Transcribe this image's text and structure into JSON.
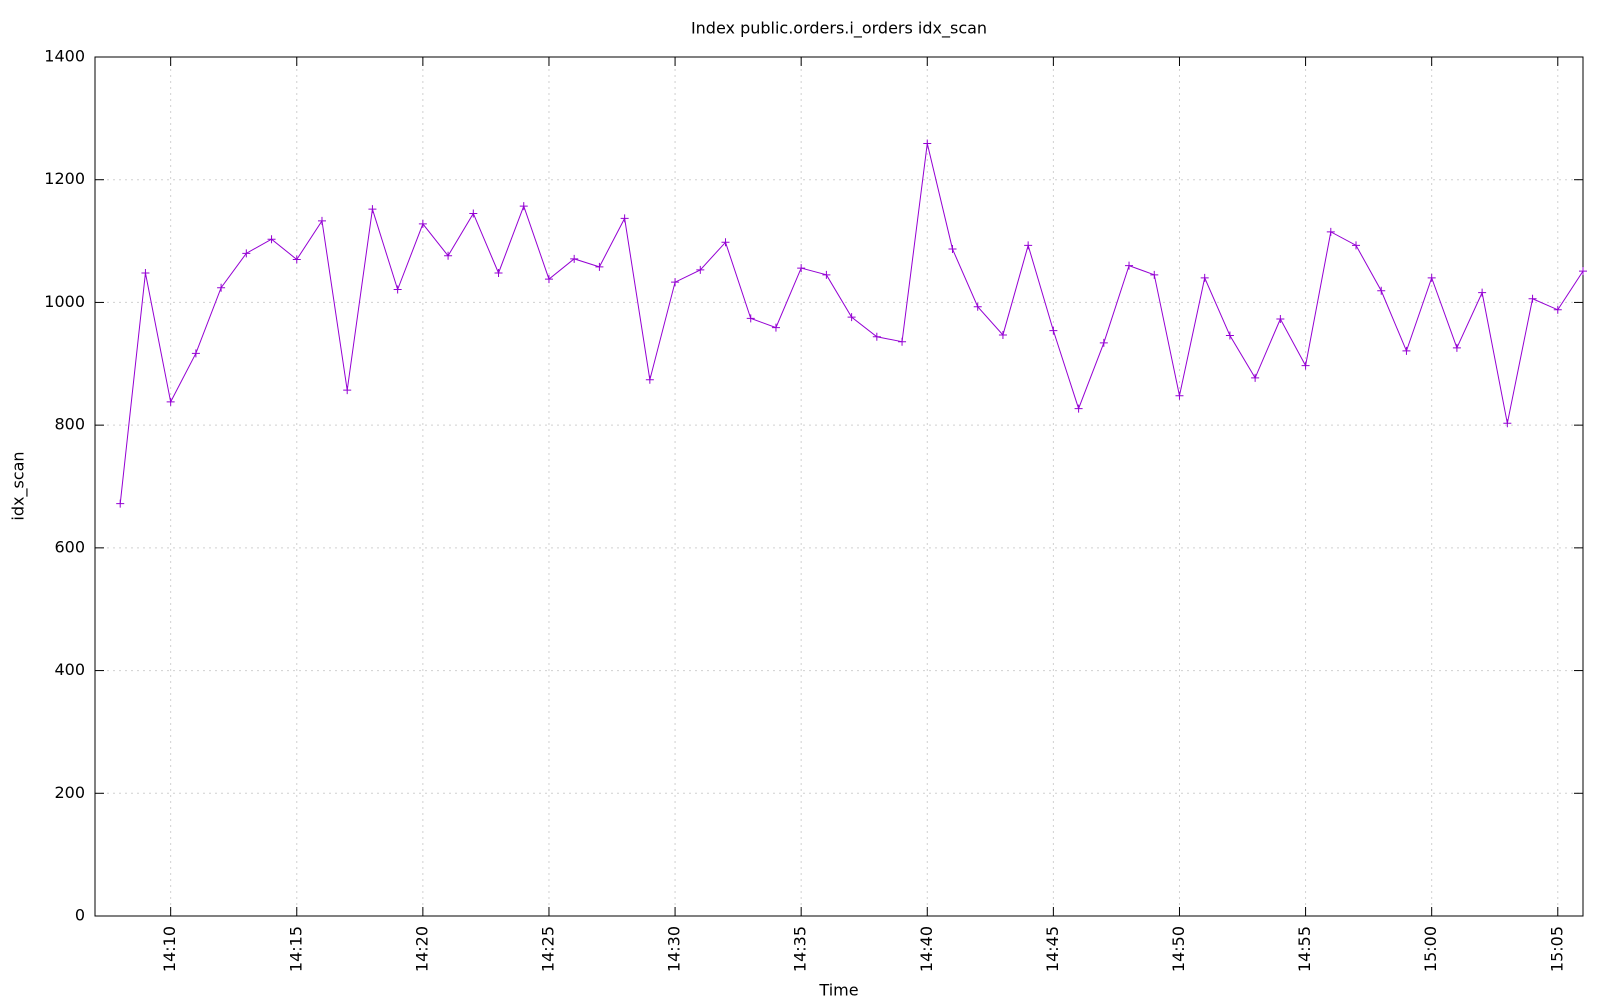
{
  "chart_data": {
    "type": "line",
    "title": "Index public.orders.i_orders idx_scan",
    "x_label": "Time",
    "y_label": "idx_scan",
    "x": [
      "14:08",
      "14:09",
      "14:10",
      "14:11",
      "14:12",
      "14:13",
      "14:14",
      "14:15",
      "14:16",
      "14:17",
      "14:18",
      "14:19",
      "14:20",
      "14:21",
      "14:22",
      "14:23",
      "14:24",
      "14:25",
      "14:26",
      "14:27",
      "14:28",
      "14:29",
      "14:30",
      "14:31",
      "14:32",
      "14:33",
      "14:34",
      "14:35",
      "14:36",
      "14:37",
      "14:38",
      "14:39",
      "14:40",
      "14:41",
      "14:42",
      "14:43",
      "14:44",
      "14:45",
      "14:46",
      "14:47",
      "14:48",
      "14:49",
      "14:50",
      "14:51",
      "14:52",
      "14:53",
      "14:54",
      "14:55",
      "14:56",
      "14:57",
      "14:58",
      "14:59",
      "15:00",
      "15:01",
      "15:02",
      "15:03",
      "15:04",
      "15:05",
      "15:06"
    ],
    "series": [
      {
        "name": "idx_scan",
        "color": "#9400d3",
        "values": [
          672,
          1048,
          838,
          917,
          1024,
          1080,
          1103,
          1070,
          1133,
          857,
          1152,
          1021,
          1128,
          1076,
          1145,
          1048,
          1157,
          1038,
          1071,
          1058,
          1137,
          874,
          1033,
          1053,
          1098,
          974,
          959,
          1056,
          1045,
          976,
          944,
          936,
          1259,
          1087,
          993,
          947,
          1093,
          954,
          827,
          934,
          1060,
          1045,
          848,
          1040,
          946,
          877,
          973,
          897,
          1115,
          1093,
          1019,
          921,
          1040,
          926,
          1016,
          803,
          1006,
          988,
          1051
        ]
      }
    ],
    "xlim": [
      "14:07",
      "15:06"
    ],
    "xticks": [
      "14:10",
      "14:15",
      "14:20",
      "14:25",
      "14:30",
      "14:35",
      "14:40",
      "14:45",
      "14:50",
      "14:55",
      "15:00",
      "15:05"
    ],
    "ylim": [
      0,
      1400
    ],
    "yticks": [
      0,
      200,
      400,
      600,
      800,
      1000,
      1200,
      1400
    ],
    "grid": true
  }
}
